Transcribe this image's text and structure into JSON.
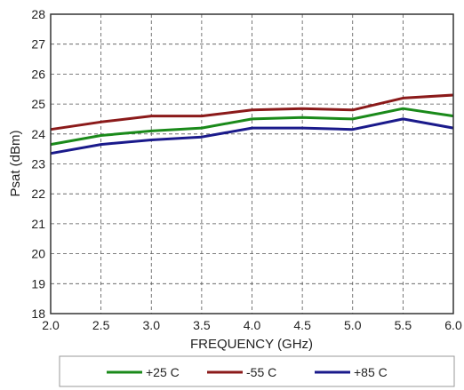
{
  "chart_data": {
    "type": "line",
    "title": "",
    "xlabel": "FREQUENCY (GHz)",
    "ylabel": "Psat (dBm)",
    "xlim": [
      2.0,
      6.0
    ],
    "ylim": [
      18,
      28
    ],
    "xticks": [
      "2.0",
      "2.5",
      "3.0",
      "3.5",
      "4.0",
      "4.5",
      "5.0",
      "5.5",
      "6.0"
    ],
    "yticks": [
      "18",
      "19",
      "20",
      "21",
      "22",
      "23",
      "24",
      "25",
      "26",
      "27",
      "28"
    ],
    "grid": true,
    "legend_position": "bottom",
    "x": [
      2.0,
      2.5,
      3.0,
      3.5,
      4.0,
      4.5,
      5.0,
      5.5,
      6.0
    ],
    "series": [
      {
        "name": "+25 C",
        "color": "#1a8a1a",
        "values": [
          23.65,
          23.95,
          24.1,
          24.2,
          24.5,
          24.55,
          24.5,
          24.85,
          24.6
        ]
      },
      {
        "name": "-55 C",
        "color": "#8b1a1a",
        "values": [
          24.15,
          24.4,
          24.6,
          24.6,
          24.8,
          24.85,
          24.8,
          25.2,
          25.3
        ]
      },
      {
        "name": "+85 C",
        "color": "#1a1a8b",
        "values": [
          23.35,
          23.65,
          23.8,
          23.9,
          24.2,
          24.2,
          24.15,
          24.5,
          24.2
        ]
      }
    ]
  }
}
